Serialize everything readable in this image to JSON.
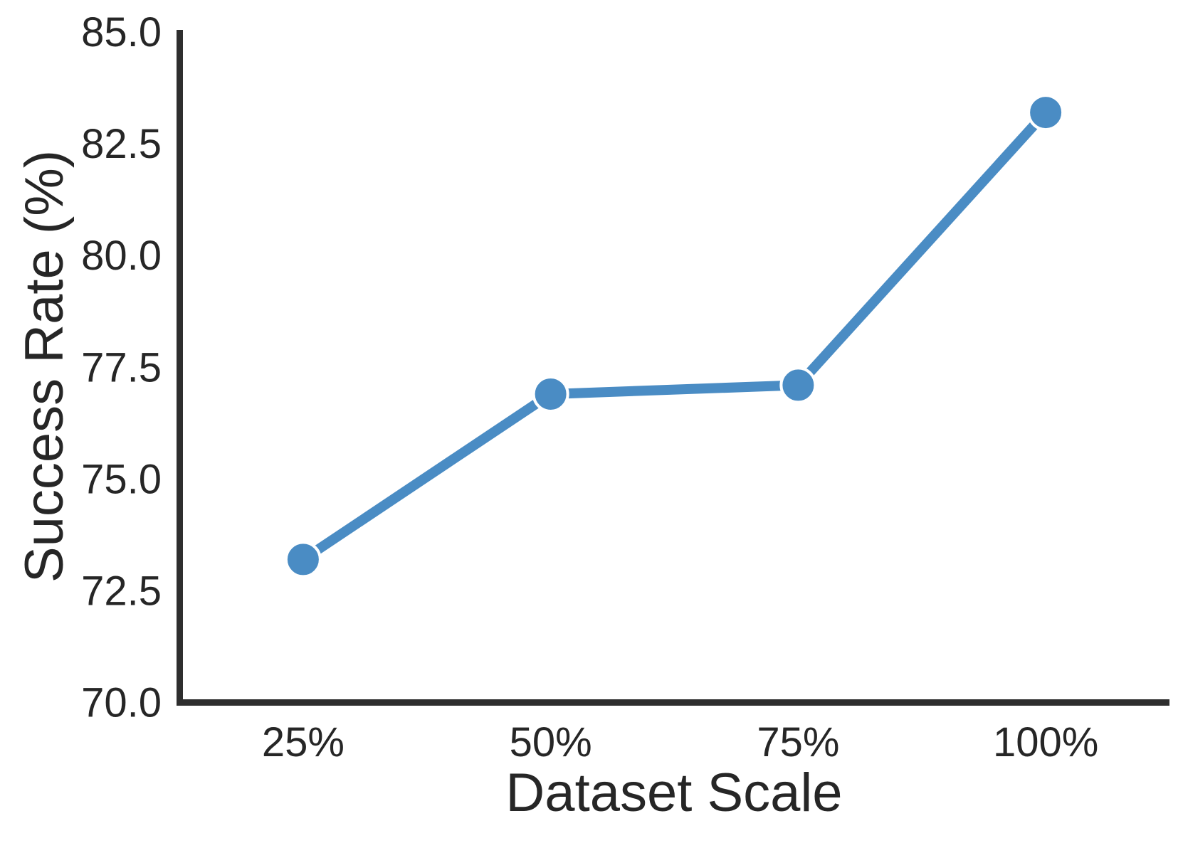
{
  "chart_data": {
    "type": "line",
    "title": "",
    "xlabel": "Dataset Scale",
    "ylabel": "Success Rate (%)",
    "categories": [
      "25%",
      "50%",
      "75%",
      "100%"
    ],
    "series": [
      {
        "name": "Success Rate",
        "values": [
          73.2,
          76.9,
          77.1,
          83.2
        ]
      }
    ],
    "ylim": [
      70.0,
      85.0
    ],
    "yticks": [
      70.0,
      72.5,
      75.0,
      77.5,
      80.0,
      82.5,
      85.0
    ],
    "ytick_labels": [
      "70.0",
      "72.5",
      "75.0",
      "77.5",
      "80.0",
      "82.5",
      "85.0"
    ],
    "xtick_labels": [
      "25%",
      "50%",
      "75%",
      "100%"
    ],
    "grid": false,
    "legend": "none",
    "line_color": "#4A8CC4",
    "marker_edge_color": "#FFFFFF",
    "axis_color": "#2E2E2E",
    "text_color": "#262626"
  }
}
